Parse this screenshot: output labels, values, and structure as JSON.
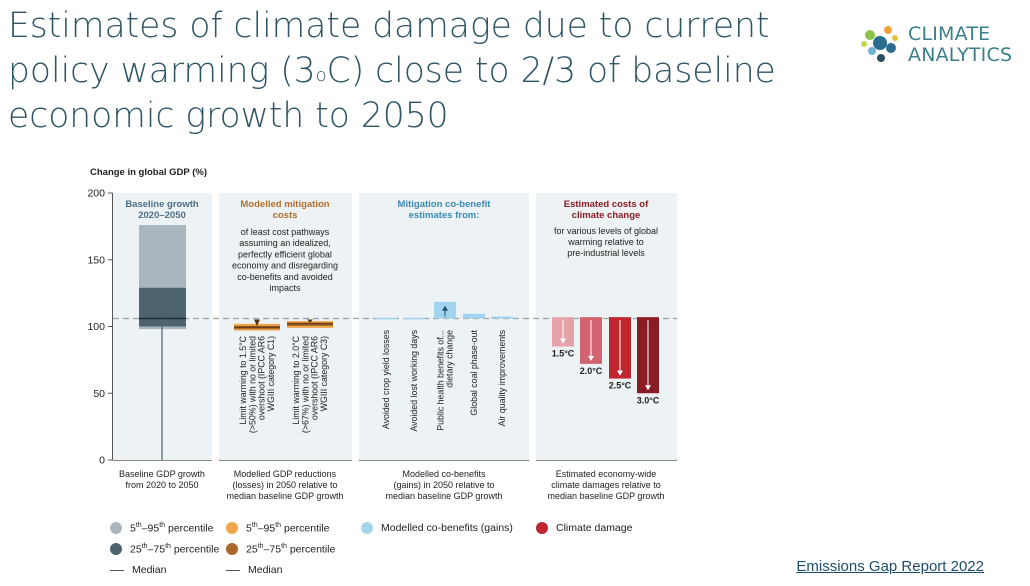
{
  "slide": {
    "title_line1": "Estimates of climate damage due to current",
    "title_line2_prefix": "policy warming (3",
    "title_line2_sup": "o",
    "title_line2_suffix": "C) close to 2/3 of baseline",
    "title_line3": "economic growth to 2050",
    "logo_line1": "CLIMATE",
    "logo_line2": "ANALYTICS",
    "footer_link": "Emissions Gap Report 2022"
  },
  "chart_data": {
    "type": "bar",
    "ylabel": "Change in global GDP (%)",
    "ylim": [
      0,
      200
    ],
    "yticks": [
      "0",
      "50",
      "100",
      "150",
      "200"
    ],
    "reference_line": 106,
    "panels": {
      "baseline": {
        "title_line1": "Baseline growth",
        "title_line2": "2020–2050",
        "caption_line1": "Baseline GDP growth",
        "caption_line2": "from 2020 to 2050",
        "p5_95": [
          98,
          176
        ],
        "p25_75": [
          100,
          129
        ],
        "median": 106
      },
      "mitigation": {
        "title_line1": "Modelled mitigation",
        "title_line2": "costs",
        "desc": [
          "of least cost pathways",
          "assuming an idealized,",
          "perfectly efficient global",
          "economy and disregarding",
          "co-benefits and avoided",
          "impacts"
        ],
        "caption": [
          "Modelled GDP reductions",
          "(losses) in 2050 relative to",
          "median baseline GDP growth"
        ],
        "bars": [
          {
            "label": [
              "Limit warming to 1.5°C",
              "(>50%) with no or limited",
              "overshoot (IPCC AR6",
              "WGIII category C1)"
            ],
            "p5_95": [
              97,
              102
            ],
            "p25_75": [
              98,
              100.5
            ],
            "median": 99.5
          },
          {
            "label": [
              "Limit warming to 2.0°C",
              "(>67%) with no or limited",
              "overshoot (IPCC AR6",
              "WGIII category C3)"
            ],
            "p5_95": [
              99,
              104
            ],
            "p25_75": [
              100.5,
              103
            ],
            "median": 102
          }
        ]
      },
      "cobenefits": {
        "title_line1": "Mitigation co-benefit",
        "title_line2": "estimates from:",
        "caption": [
          "Modelled co-benefits",
          "(gains) in 2050 relative to",
          "median baseline GDP growth"
        ],
        "categories": [
          "Avoided crop yield losses",
          "Avoided lost working days",
          "Public health benefits of... dietary change",
          "Global coal phase-out",
          "Air quality improvements"
        ],
        "values": [
          0.5,
          0.5,
          12.5,
          3.5,
          1.5
        ]
      },
      "damages": {
        "title_line1": "Estimated costs of",
        "title_line2": "climate change",
        "desc": [
          "for various levels of global",
          "warming relative to",
          "pre-industrial levels"
        ],
        "caption": [
          "Estimated economy-wide",
          "climate damages relative to",
          "median baseline GDP growth"
        ],
        "categories": [
          "1.5°C",
          "2.0°C",
          "2.5°C",
          "3.0°C"
        ],
        "values": [
          -21,
          -34,
          -45,
          -56
        ],
        "colors": [
          "#e4a3ab",
          "#d16470",
          "#c0262f",
          "#8a1c25"
        ]
      }
    },
    "legend": {
      "grey_p5_95": "5th–95th percentile",
      "grey_p25_75": "25th–75th percentile",
      "grey_median": "Median",
      "orange_p5_95": "5th–95th percentile",
      "orange_p25_75": "25th–75th percentile",
      "orange_median": "Median",
      "cobenefit": "Modelled co-benefits (gains)",
      "damage": "Climate damage"
    },
    "colors": {
      "panel_bg": "#edf2f4",
      "baseline_light": "#a9b6bd",
      "baseline_dark": "#4d6470",
      "orange_light": "#f1a64b",
      "orange_dark": "#a9682a",
      "cobenefit": "#a3d4ef",
      "title_baseline": "#4d6e85",
      "title_mitigation": "#b26f2c",
      "title_cobenefit": "#3a8bb4",
      "title_damage": "#8a1c25"
    }
  }
}
